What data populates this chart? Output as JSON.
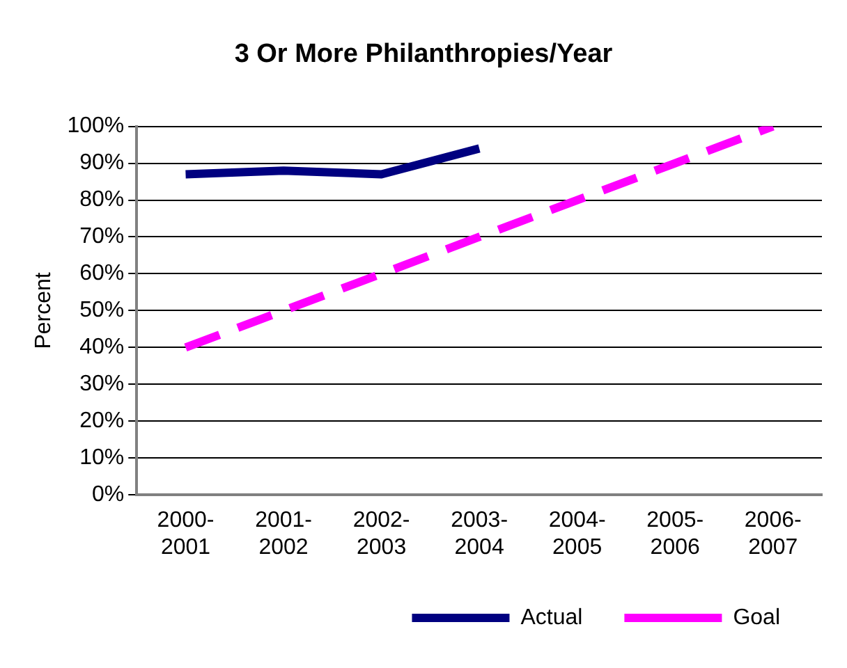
{
  "chart_data": {
    "type": "line",
    "title": "3 Or More Philanthropies/Year",
    "ylabel": "Percent",
    "categories": [
      "2000-2001",
      "2001-2002",
      "2002-2003",
      "2003-2004",
      "2004-2005",
      "2005-2006",
      "2006-2007"
    ],
    "series": [
      {
        "name": "Actual",
        "color": "#000080",
        "values": [
          87,
          88,
          87,
          94,
          null,
          null,
          null
        ],
        "line_style": "solid"
      },
      {
        "name": "Goal",
        "color": "#ff00ff",
        "values": [
          40,
          50,
          60,
          70,
          80,
          90,
          100
        ],
        "line_style": "dashed"
      }
    ],
    "ylim": [
      0,
      100
    ],
    "yticks": [
      {
        "value": 0,
        "label": "0%"
      },
      {
        "value": 10,
        "label": "10%"
      },
      {
        "value": 20,
        "label": "20%"
      },
      {
        "value": 30,
        "label": "30%"
      },
      {
        "value": 40,
        "label": "40%"
      },
      {
        "value": 50,
        "label": "50%"
      },
      {
        "value": 60,
        "label": "60%"
      },
      {
        "value": 70,
        "label": "70%"
      },
      {
        "value": 80,
        "label": "80%"
      },
      {
        "value": 90,
        "label": "90%"
      },
      {
        "value": 100,
        "label": "100%"
      }
    ],
    "grid": "y",
    "legend": "bottom",
    "marker": "none"
  }
}
